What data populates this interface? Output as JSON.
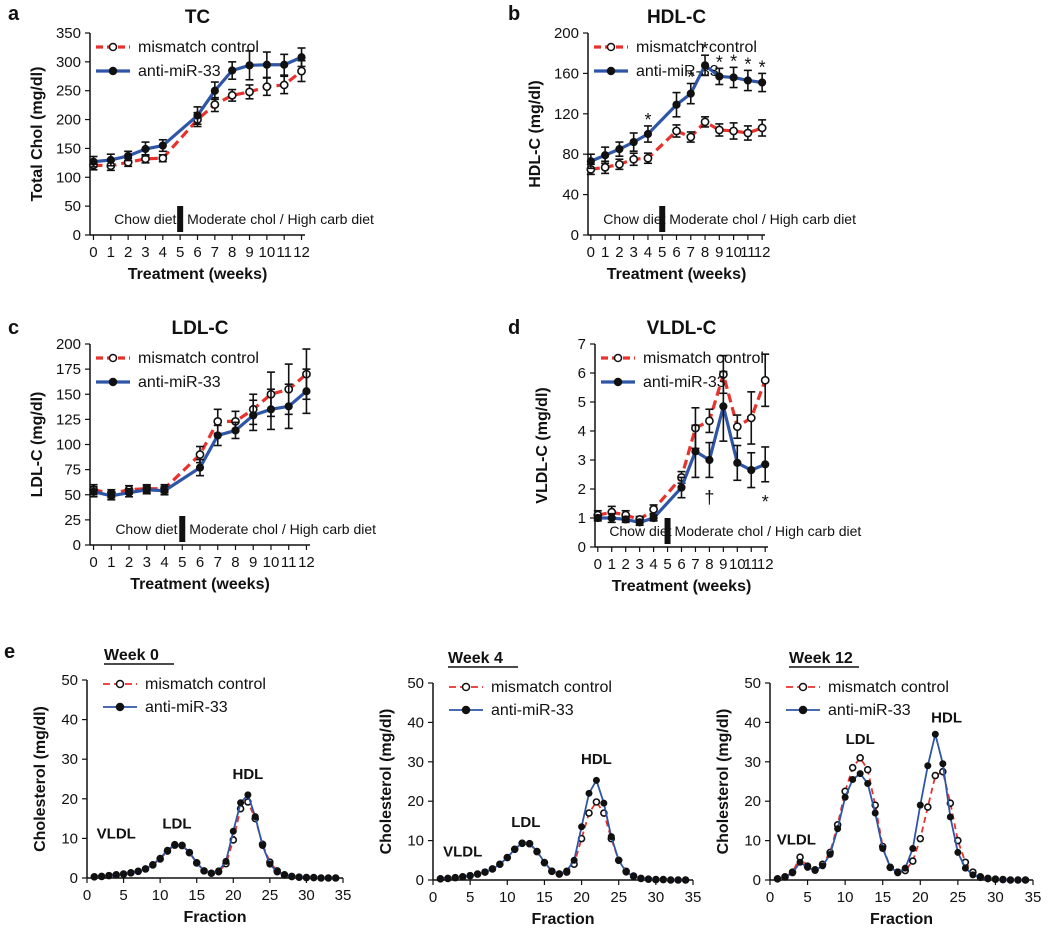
{
  "figure_labels": {
    "a": "a",
    "b": "b",
    "c": "c",
    "d": "d",
    "e": "e"
  },
  "legend": {
    "mismatch": "mismatch control",
    "anti": "anti-miR-33"
  },
  "colors": {
    "mismatch": "#e8322d",
    "anti": "#2f56a6",
    "error": "#111111",
    "axis": "#111111"
  },
  "annotations": {
    "chow_diet": "Chow diet",
    "moderate_diet": "Moderate chol / High carb diet",
    "vldl": "VLDL",
    "ldl": "LDL",
    "hdl": "HDL"
  },
  "chart_data": [
    {
      "id": "a",
      "type": "line",
      "title": "TC",
      "xlabel": "Treatment (weeks)",
      "ylabel": "Total Chol (mg/dl)",
      "x": [
        0,
        1,
        2,
        3,
        4,
        5,
        6,
        7,
        8,
        9,
        10,
        11,
        12
      ],
      "ylim": [
        0,
        350
      ],
      "yticks": [
        0,
        50,
        100,
        150,
        200,
        250,
        300,
        350
      ],
      "xticks": [
        0,
        1,
        2,
        3,
        4,
        5,
        6,
        7,
        8,
        9,
        10,
        11,
        12
      ],
      "series": [
        {
          "name": "mismatch control",
          "x": [
            0,
            1,
            2,
            3,
            4,
            6,
            7,
            8,
            9,
            10,
            11,
            12
          ],
          "values": [
            121,
            120,
            126,
            132,
            133,
            200,
            226,
            242,
            248,
            257,
            260,
            284
          ],
          "errors": [
            8,
            8,
            7,
            7,
            6,
            12,
            12,
            10,
            12,
            15,
            15,
            18
          ]
        },
        {
          "name": "anti-miR-33",
          "x": [
            0,
            1,
            2,
            3,
            4,
            6,
            7,
            8,
            9,
            10,
            11,
            12
          ],
          "values": [
            127,
            130,
            137,
            149,
            155,
            207,
            250,
            285,
            294,
            295,
            295,
            308
          ],
          "errors": [
            9,
            10,
            8,
            12,
            10,
            15,
            15,
            15,
            25,
            22,
            18,
            16
          ]
        }
      ],
      "significance": []
    },
    {
      "id": "b",
      "type": "line",
      "title": "HDL-C",
      "xlabel": "Treatment (weeks)",
      "ylabel": "HDL-C (mg/dl)",
      "x": [
        0,
        1,
        2,
        3,
        4,
        5,
        6,
        7,
        8,
        9,
        10,
        11,
        12
      ],
      "ylim": [
        0,
        200
      ],
      "yticks": [
        0,
        40,
        80,
        120,
        160,
        200
      ],
      "xticks": [
        0,
        1,
        2,
        3,
        4,
        5,
        6,
        7,
        8,
        9,
        10,
        11,
        12
      ],
      "series": [
        {
          "name": "mismatch control",
          "x": [
            0,
            1,
            2,
            3,
            4,
            6,
            7,
            8,
            9,
            10,
            11,
            12
          ],
          "values": [
            65,
            67,
            70,
            75,
            76,
            103,
            97,
            112,
            104,
            103,
            101,
            106
          ],
          "errors": [
            5,
            6,
            5,
            6,
            5,
            6,
            5,
            5,
            6,
            8,
            7,
            8
          ]
        },
        {
          "name": "anti-miR-33",
          "x": [
            0,
            1,
            2,
            3,
            4,
            6,
            7,
            8,
            9,
            10,
            11,
            12
          ],
          "values": [
            73,
            79,
            85,
            92,
            100,
            129,
            140,
            168,
            157,
            156,
            153,
            151
          ],
          "errors": [
            7,
            8,
            7,
            9,
            8,
            12,
            10,
            10,
            8,
            10,
            10,
            9
          ]
        }
      ],
      "significance": [
        {
          "x": 4,
          "y": 100,
          "mark": "*"
        },
        {
          "x": 7,
          "y": 140,
          "mark": "*"
        },
        {
          "x": 8,
          "y": 168,
          "mark": "*"
        },
        {
          "x": 9,
          "y": 157,
          "mark": "*"
        },
        {
          "x": 10,
          "y": 156,
          "mark": "*"
        },
        {
          "x": 11,
          "y": 153,
          "mark": "*"
        },
        {
          "x": 12,
          "y": 151,
          "mark": "*"
        }
      ]
    },
    {
      "id": "c",
      "type": "line",
      "title": "LDL-C",
      "xlabel": "Treatment (weeks)",
      "ylabel": "LDL-C (mg/dl)",
      "x": [
        0,
        1,
        2,
        3,
        4,
        5,
        6,
        7,
        8,
        9,
        10,
        11,
        12
      ],
      "ylim": [
        0,
        200
      ],
      "yticks": [
        0,
        25,
        50,
        75,
        100,
        125,
        150,
        175,
        200
      ],
      "xticks": [
        0,
        1,
        2,
        3,
        4,
        5,
        6,
        7,
        8,
        9,
        10,
        11,
        12
      ],
      "series": [
        {
          "name": "mismatch control",
          "x": [
            0,
            1,
            2,
            3,
            4,
            6,
            7,
            8,
            9,
            10,
            11,
            12
          ],
          "values": [
            55,
            51,
            55,
            56,
            56,
            90,
            123,
            123,
            135,
            150,
            155,
            170
          ],
          "errors": [
            5,
            4,
            4,
            4,
            4,
            8,
            12,
            10,
            15,
            22,
            25,
            25
          ]
        },
        {
          "name": "anti-miR-33",
          "x": [
            0,
            1,
            2,
            3,
            4,
            6,
            7,
            8,
            9,
            10,
            11,
            12
          ],
          "values": [
            53,
            49,
            52,
            55,
            54,
            77,
            109,
            114,
            129,
            135,
            138,
            153
          ],
          "errors": [
            5,
            4,
            4,
            4,
            4,
            8,
            10,
            8,
            15,
            20,
            22,
            22
          ]
        }
      ],
      "significance": []
    },
    {
      "id": "d",
      "type": "line",
      "title": "VLDL-C",
      "xlabel": "Treatment (weeks)",
      "ylabel": "VLDL-C (mg/dl)",
      "x": [
        0,
        1,
        2,
        3,
        4,
        5,
        6,
        7,
        8,
        9,
        10,
        11,
        12
      ],
      "ylim": [
        0,
        7
      ],
      "yticks": [
        0,
        1,
        2,
        3,
        4,
        5,
        6,
        7
      ],
      "xticks": [
        0,
        1,
        2,
        3,
        4,
        5,
        6,
        7,
        8,
        9,
        10,
        11,
        12
      ],
      "series": [
        {
          "name": "mismatch control",
          "x": [
            0,
            1,
            2,
            3,
            4,
            6,
            7,
            8,
            9,
            10,
            11,
            12
          ],
          "values": [
            1.1,
            1.2,
            1.1,
            0.95,
            1.3,
            2.4,
            4.1,
            4.35,
            5.95,
            4.15,
            4.45,
            5.75
          ],
          "errors": [
            0.15,
            0.2,
            0.15,
            0.1,
            0.15,
            0.2,
            0.7,
            0.4,
            0.65,
            0.4,
            0.9,
            0.9
          ]
        },
        {
          "name": "anti-miR-33",
          "x": [
            0,
            1,
            2,
            3,
            4,
            6,
            7,
            8,
            9,
            10,
            11,
            12
          ],
          "values": [
            1.0,
            1.0,
            0.95,
            0.85,
            1.0,
            2.05,
            3.3,
            3.0,
            4.85,
            2.9,
            2.65,
            2.85
          ],
          "errors": [
            0.1,
            0.15,
            0.1,
            0.1,
            0.1,
            0.35,
            0.9,
            0.6,
            1.2,
            0.6,
            0.6,
            0.6
          ]
        }
      ],
      "significance": [
        {
          "x": 8,
          "y": 1.25,
          "mark": "†"
        },
        {
          "x": 12,
          "y": 1.0,
          "mark": "*"
        }
      ]
    },
    {
      "id": "e0",
      "type": "line",
      "title": "Week 0",
      "xlabel": "Fraction",
      "ylabel": "Cholesterol (mg/dl)",
      "xlim": [
        0,
        35
      ],
      "ylim": [
        0,
        50
      ],
      "xticks": [
        0,
        5,
        10,
        15,
        20,
        25,
        30,
        35
      ],
      "yticks": [
        0,
        10,
        20,
        30,
        40,
        50
      ],
      "x": [
        1,
        2,
        3,
        4,
        5,
        6,
        7,
        8,
        9,
        10,
        11,
        12,
        13,
        14,
        15,
        16,
        17,
        18,
        19,
        20,
        21,
        22,
        23,
        24,
        25,
        26,
        27,
        28,
        29,
        30,
        31,
        32,
        33,
        34
      ],
      "series": [
        {
          "name": "mismatch control",
          "values": [
            0.3,
            0.4,
            0.6,
            0.8,
            1.0,
            1.3,
            1.7,
            2.3,
            3.3,
            4.8,
            6.8,
            8.3,
            8.2,
            6.4,
            3.8,
            1.8,
            1.2,
            1.6,
            3.6,
            9.6,
            17.5,
            19.2,
            15.0,
            8.5,
            4.0,
            1.8,
            0.8,
            0.4,
            0.2,
            0.1,
            0.1,
            0.0,
            0.0,
            0.0
          ]
        },
        {
          "name": "anti-miR-33",
          "values": [
            0.3,
            0.4,
            0.6,
            0.8,
            1.0,
            1.3,
            1.7,
            2.3,
            3.4,
            5.0,
            7.0,
            8.5,
            8.3,
            6.5,
            3.9,
            1.8,
            1.2,
            1.8,
            4.2,
            11.8,
            19.0,
            21.0,
            15.5,
            8.2,
            3.5,
            1.5,
            0.7,
            0.3,
            0.2,
            0.1,
            0.1,
            0.0,
            0.0,
            0.0
          ]
        }
      ],
      "peaks": [
        {
          "key": "vldl",
          "x": 4,
          "y": 10
        },
        {
          "key": "ldl",
          "x": 12.3,
          "y": 12.5
        },
        {
          "key": "hdl",
          "x": 22,
          "y": 25
        }
      ]
    },
    {
      "id": "e4",
      "type": "line",
      "title": "Week 4",
      "xlabel": "Fraction",
      "ylabel": "Cholesterol (mg/dl)",
      "xlim": [
        0,
        35
      ],
      "ylim": [
        0,
        50
      ],
      "xticks": [
        0,
        5,
        10,
        15,
        20,
        25,
        30,
        35
      ],
      "yticks": [
        0,
        10,
        20,
        30,
        40,
        50
      ],
      "x": [
        1,
        2,
        3,
        4,
        5,
        6,
        7,
        8,
        9,
        10,
        11,
        12,
        13,
        14,
        15,
        16,
        17,
        18,
        19,
        20,
        21,
        22,
        23,
        24,
        25,
        26,
        27,
        28,
        29,
        30,
        31,
        32,
        33,
        34
      ],
      "series": [
        {
          "name": "mismatch control",
          "values": [
            0.3,
            0.4,
            0.6,
            0.8,
            1.1,
            1.5,
            2.0,
            2.8,
            4.0,
            5.7,
            7.8,
            9.3,
            9.2,
            7.2,
            4.4,
            2.2,
            1.5,
            2.0,
            4.0,
            10.5,
            17.0,
            19.8,
            17.0,
            10.5,
            5.0,
            2.2,
            1.0,
            0.4,
            0.2,
            0.1,
            0.1,
            0.0,
            0.0,
            0.0
          ]
        },
        {
          "name": "anti-miR-33",
          "values": [
            0.3,
            0.4,
            0.6,
            0.8,
            1.1,
            1.5,
            2.0,
            2.8,
            4.0,
            5.7,
            7.8,
            9.4,
            9.3,
            7.3,
            4.5,
            2.3,
            1.6,
            2.3,
            5.0,
            13.5,
            22.0,
            25.3,
            19.5,
            11.0,
            5.0,
            2.0,
            0.9,
            0.4,
            0.2,
            0.1,
            0.1,
            0.0,
            0.0,
            0.0
          ]
        }
      ],
      "peaks": [
        {
          "key": "vldl",
          "x": 4,
          "y": 6
        },
        {
          "key": "ldl",
          "x": 12.5,
          "y": 13.5
        },
        {
          "key": "hdl",
          "x": 22,
          "y": 29.5
        }
      ]
    },
    {
      "id": "e12",
      "type": "line",
      "title": "Week 12",
      "xlabel": "Fraction",
      "ylabel": "Cholesterol (mg/dl)",
      "xlim": [
        0,
        35
      ],
      "ylim": [
        0,
        50
      ],
      "xticks": [
        0,
        5,
        10,
        15,
        20,
        25,
        30,
        35
      ],
      "yticks": [
        0,
        10,
        20,
        30,
        40,
        50
      ],
      "x": [
        1,
        2,
        3,
        4,
        5,
        6,
        7,
        8,
        9,
        10,
        11,
        12,
        13,
        14,
        15,
        16,
        17,
        18,
        19,
        20,
        21,
        22,
        23,
        24,
        25,
        26,
        27,
        28,
        29,
        30,
        31,
        32,
        33,
        34
      ],
      "series": [
        {
          "name": "mismatch control",
          "values": [
            0.3,
            0.8,
            2.0,
            5.8,
            3.5,
            2.6,
            4.0,
            7.0,
            14.0,
            22.5,
            28.5,
            31.0,
            28.0,
            19.0,
            8.5,
            3.2,
            2.0,
            2.4,
            4.8,
            10.5,
            18.5,
            26.5,
            27.5,
            19.5,
            10.0,
            4.5,
            2.0,
            0.8,
            0.4,
            0.2,
            0.1,
            0.0,
            0.0,
            0.0
          ]
        },
        {
          "name": "anti-miR-33",
          "values": [
            0.3,
            0.7,
            1.8,
            4.5,
            3.2,
            2.4,
            3.6,
            6.5,
            13.0,
            21.0,
            25.5,
            27.0,
            24.5,
            17.0,
            8.0,
            3.3,
            1.8,
            3.0,
            8.0,
            19.0,
            29.0,
            37.0,
            29.5,
            16.0,
            7.0,
            3.0,
            1.3,
            0.6,
            0.3,
            0.2,
            0.1,
            0.0,
            0.0,
            0.0
          ]
        }
      ],
      "peaks": [
        {
          "key": "vldl",
          "x": 3.5,
          "y": 9
        },
        {
          "key": "ldl",
          "x": 12,
          "y": 34.5
        },
        {
          "key": "hdl",
          "x": 23.5,
          "y": 40
        }
      ]
    }
  ]
}
